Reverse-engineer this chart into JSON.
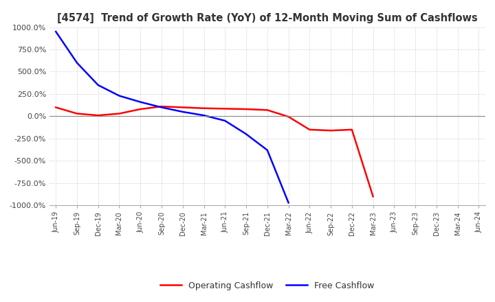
{
  "title": "[4574]  Trend of Growth Rate (YoY) of 12-Month Moving Sum of Cashflows",
  "ylim": [
    -1000,
    1000
  ],
  "yticks": [
    -1000,
    -750,
    -500,
    -250,
    0,
    250,
    500,
    750,
    1000
  ],
  "ytick_labels": [
    "-1000.0%",
    "-750.0%",
    "-500.0%",
    "-250.0%",
    "0.0%",
    "250.0%",
    "500.0%",
    "750.0%",
    "1000.0%"
  ],
  "background_color": "#ffffff",
  "grid_color": "#bbbbbb",
  "operating_color": "#ff0000",
  "free_color": "#0000ff",
  "x_labels": [
    "Jun-19",
    "Sep-19",
    "Dec-19",
    "Mar-20",
    "Jun-20",
    "Sep-20",
    "Dec-20",
    "Mar-21",
    "Jun-21",
    "Sep-21",
    "Dec-21",
    "Mar-22",
    "Jun-22",
    "Sep-22",
    "Dec-22",
    "Mar-23",
    "Jun-23",
    "Sep-23",
    "Dec-23",
    "Mar-24",
    "Jun-24"
  ],
  "operating_cashflow": [
    100,
    30,
    10,
    30,
    80,
    110,
    100,
    90,
    85,
    80,
    70,
    -5,
    -150,
    -160,
    -150,
    -900,
    null,
    null,
    null,
    null,
    null
  ],
  "free_cashflow": [
    950,
    600,
    350,
    230,
    160,
    100,
    50,
    10,
    -50,
    -200,
    -380,
    -970,
    null,
    null,
    null,
    null,
    null,
    null,
    null,
    null,
    null
  ]
}
